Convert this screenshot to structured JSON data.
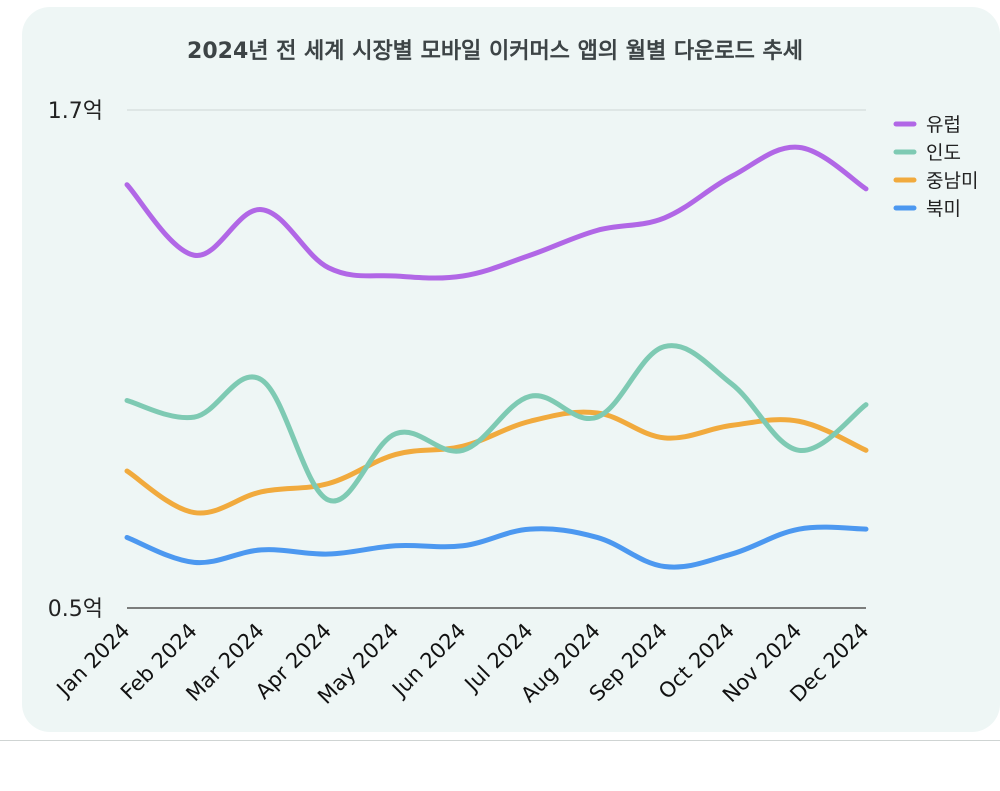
{
  "chart_data": {
    "type": "line",
    "title": "2024년 전 세계 시장별 모바일 이커머스 앱의 월별 다운로드 추세",
    "xlabel": "",
    "ylabel": "",
    "ylim": [
      0.5,
      1.7
    ],
    "y_tick_labels": [
      "1.7억",
      "0.5억"
    ],
    "categories": [
      "Jan 2024",
      "Feb 2024",
      "Mar 2024",
      "Apr 2024",
      "May 2024",
      "Jun 2024",
      "Jul 2024",
      "Aug 2024",
      "Sep 2024",
      "Oct 2024",
      "Nov 2024",
      "Dec 2024"
    ],
    "legend_position": "top-right",
    "grid": true,
    "series": [
      {
        "name": "유럽",
        "color": "#b167e6",
        "values": [
          1.52,
          1.35,
          1.46,
          1.32,
          1.3,
          1.3,
          1.35,
          1.41,
          1.44,
          1.54,
          1.61,
          1.51
        ]
      },
      {
        "name": "인도",
        "color": "#7ecab3",
        "values": [
          1.0,
          0.96,
          1.05,
          0.76,
          0.92,
          0.88,
          1.01,
          0.96,
          1.13,
          1.04,
          0.88,
          0.99
        ]
      },
      {
        "name": "중남미",
        "color": "#f1aa3d",
        "values": [
          0.83,
          0.73,
          0.78,
          0.8,
          0.87,
          0.89,
          0.95,
          0.97,
          0.91,
          0.94,
          0.95,
          0.88
        ]
      },
      {
        "name": "북미",
        "color": "#4c98f0",
        "values": [
          0.67,
          0.61,
          0.64,
          0.63,
          0.65,
          0.65,
          0.69,
          0.67,
          0.6,
          0.63,
          0.69,
          0.69
        ]
      }
    ]
  }
}
